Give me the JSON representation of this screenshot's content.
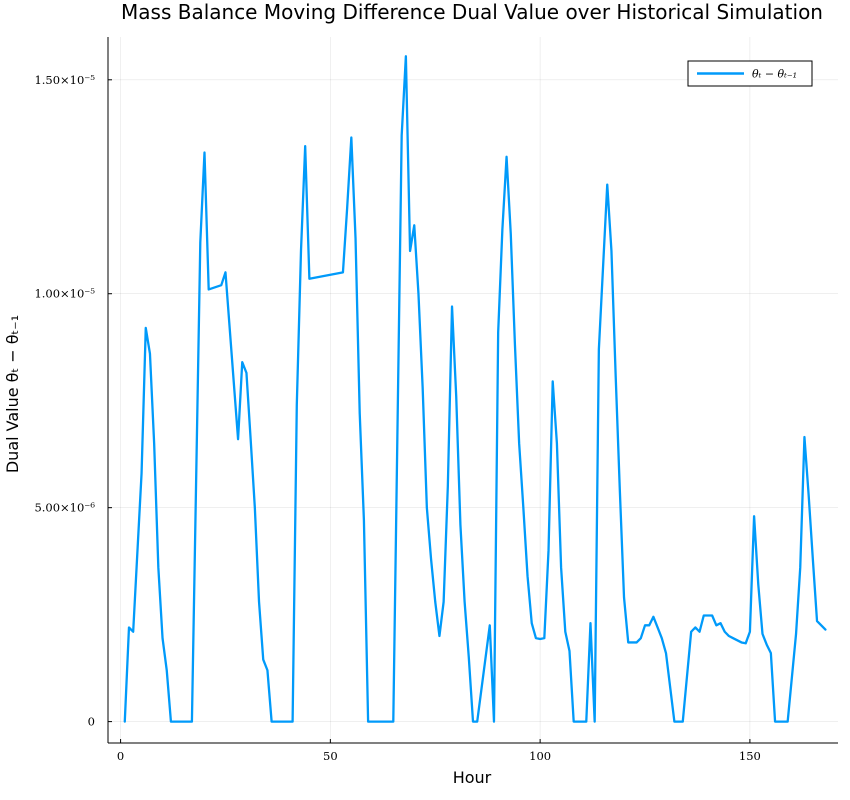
{
  "chart_data": {
    "type": "line",
    "title": "Mass Balance Moving Difference Dual Value over Historical Simulation",
    "xlabel": "Hour",
    "ylabel": "Dual Value θₜ − θₜ₋₁",
    "xlim": [
      -3,
      171
    ],
    "ylim": [
      -5e-07,
      1.6e-05
    ],
    "x_ticks": [
      {
        "value": 0,
        "label": "0"
      },
      {
        "value": 50,
        "label": "50"
      },
      {
        "value": 100,
        "label": "100"
      },
      {
        "value": 150,
        "label": "150"
      }
    ],
    "y_ticks": [
      {
        "value": 0,
        "label": "0"
      },
      {
        "value": 5e-06,
        "label": "5.00×10⁻⁶"
      },
      {
        "value": 1e-05,
        "label": "1.00×10⁻⁵"
      },
      {
        "value": 1.5e-05,
        "label": "1.50×10⁻⁵"
      }
    ],
    "grid": true,
    "legend_position": "top-right",
    "series": [
      {
        "name": "θₜ − θₜ₋₁",
        "color": "#009AFA",
        "x": [
          1,
          2,
          3,
          5,
          6,
          7,
          8,
          9,
          10,
          11,
          12,
          17,
          19,
          20,
          21,
          24,
          25,
          28,
          29,
          30,
          31,
          32,
          33,
          34,
          35,
          36,
          41,
          42,
          43,
          44,
          45,
          53,
          54,
          55,
          56,
          57,
          58,
          59,
          65,
          67,
          68,
          69,
          70,
          71,
          72,
          73,
          74,
          75,
          76,
          77,
          78,
          79,
          80,
          81,
          82,
          83,
          84,
          85,
          88,
          89,
          90,
          91,
          92,
          93,
          94,
          95,
          96,
          97,
          98,
          99,
          100,
          101,
          102,
          103,
          104,
          105,
          106,
          107,
          108,
          111,
          112,
          113,
          114,
          116,
          117,
          118,
          119,
          120,
          121,
          122,
          123,
          124,
          125,
          126,
          127,
          128,
          129,
          130,
          132,
          133,
          134,
          136,
          137,
          138,
          139,
          140,
          141,
          142,
          143,
          144,
          145,
          146,
          148,
          149,
          150,
          151,
          152,
          153,
          154,
          155,
          156,
          157,
          159,
          161,
          162,
          163,
          164,
          165,
          166,
          167,
          168
        ],
        "values": [
          0,
          2.2e-06,
          2.1e-06,
          5.8e-06,
          9.2e-06,
          8.6e-06,
          6.5e-06,
          3.6e-06,
          1.95e-06,
          1.2e-06,
          0,
          0,
          1.12e-05,
          1.33e-05,
          1.01e-05,
          1.02e-05,
          1.05e-05,
          6.6e-06,
          8.4e-06,
          8.15e-06,
          6.6e-06,
          5e-06,
          2.8e-06,
          1.45e-06,
          1.2e-06,
          0,
          0,
          7.4e-06,
          1.1e-05,
          1.345e-05,
          1.035e-05,
          1.05e-05,
          1.2e-05,
          1.365e-05,
          1.13e-05,
          7.2e-06,
          4.7e-06,
          0,
          0,
          1.37e-05,
          1.555e-05,
          1.1e-05,
          1.16e-05,
          1e-05,
          7.8e-06,
          5e-06,
          3.8e-06,
          2.8e-06,
          2e-06,
          2.8e-06,
          5.5e-06,
          9.7e-06,
          7.6e-06,
          4.6e-06,
          2.8e-06,
          1.5e-06,
          0,
          0,
          2.25e-06,
          0,
          9.1e-06,
          1.15e-05,
          1.32e-05,
          1.14e-05,
          8.8e-06,
          6.5e-06,
          5e-06,
          3.4e-06,
          2.3e-06,
          1.95e-06,
          1.93e-06,
          1.95e-06,
          4e-06,
          7.95e-06,
          6.5e-06,
          3.6e-06,
          2.1e-06,
          1.65e-06,
          0,
          0,
          2.3e-06,
          0,
          8.7e-06,
          1.255e-05,
          1.1e-05,
          8.1e-06,
          5.4e-06,
          2.9e-06,
          1.85e-06,
          1.85e-06,
          1.85e-06,
          1.95e-06,
          2.25e-06,
          2.25e-06,
          2.45e-06,
          2.2e-06,
          1.95e-06,
          1.6e-06,
          0,
          0,
          0,
          2.1e-06,
          2.2e-06,
          2.1e-06,
          2.48e-06,
          2.48e-06,
          2.48e-06,
          2.25e-06,
          2.3e-06,
          2.1e-06,
          2e-06,
          1.95e-06,
          1.85e-06,
          1.83e-06,
          2.1e-06,
          4.8e-06,
          3.2e-06,
          2.05e-06,
          1.8e-06,
          1.6e-06,
          0,
          0,
          0,
          2.05e-06,
          3.6e-06,
          6.65e-06,
          5.3e-06,
          3.8e-06,
          2.35e-06,
          2.25e-06,
          2.15e-06
        ]
      }
    ]
  }
}
